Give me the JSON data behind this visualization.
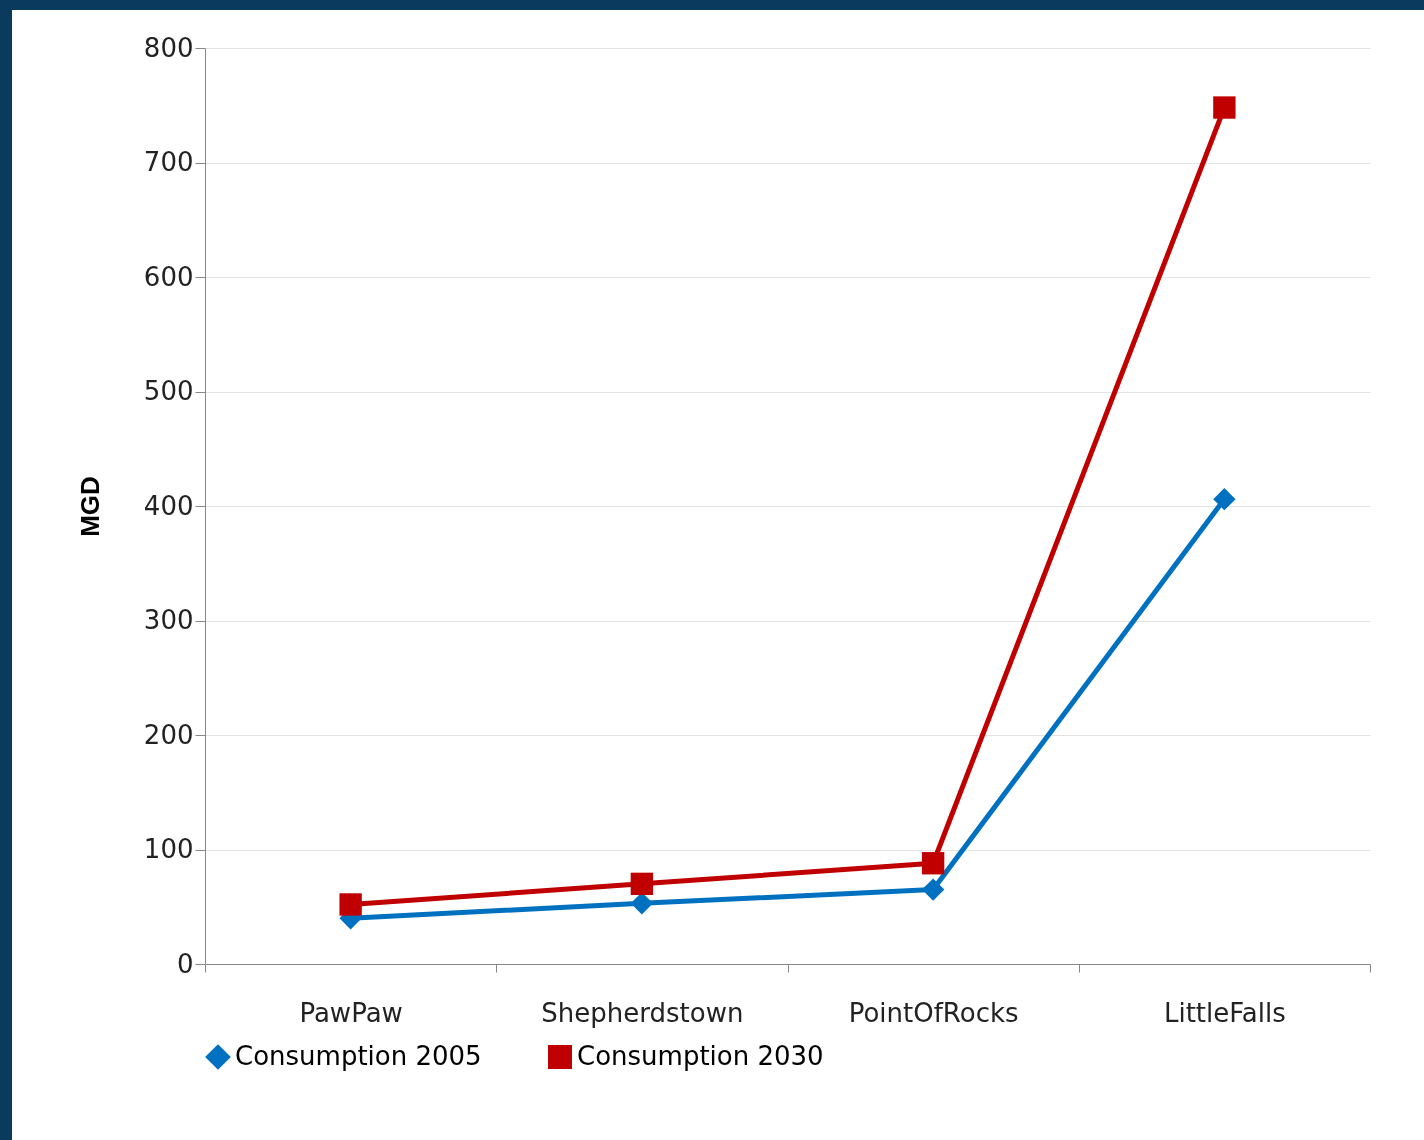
{
  "chart_data": {
    "type": "line",
    "ylabel": "MGD",
    "categories": [
      "PawPaw",
      "Shepherdstown",
      "PointOfRocks",
      "LittleFalls"
    ],
    "series": [
      {
        "name": "Consumption 2005",
        "color": "#0070c0",
        "marker": "diamond",
        "values": [
          40,
          53,
          65,
          406
        ]
      },
      {
        "name": "Consumption 2030",
        "color": "#c00000",
        "marker": "square",
        "values": [
          52,
          70,
          88,
          748
        ]
      }
    ],
    "ylim": [
      0,
      800
    ],
    "yticks": [
      0,
      100,
      200,
      300,
      400,
      500,
      600,
      700,
      800
    ],
    "grid": "y",
    "legend": "bottom",
    "line_style": "solid"
  }
}
